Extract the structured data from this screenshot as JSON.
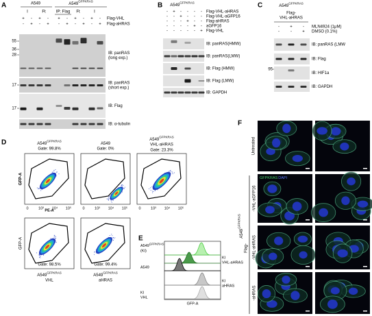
{
  "panel_a": {
    "label": "A",
    "parental": "A549",
    "ki": {
      "base": "A549",
      "sup": "GFPKRAS"
    },
    "subheaders": [
      "I",
      "Ft",
      "IP: Flag",
      "Ft",
      "I"
    ],
    "rows": [
      {
        "label": "Flag-VHL",
        "signs": [
          "+",
          "-",
          "+",
          "-",
          "+",
          "-",
          "+",
          "-",
          "+",
          "-"
        ]
      },
      {
        "label": "Flag-aHRAS",
        "signs": [
          "-",
          "+",
          "-",
          "+",
          "-",
          "+",
          "-",
          "+",
          "-",
          "+"
        ]
      }
    ],
    "markers": [
      55,
      36,
      28,
      17,
      17
    ],
    "blots": [
      [
        "IB: panRAS",
        "(long exp.)"
      ],
      [
        "IB: panRAS",
        "(short exp.)"
      ],
      [
        "IB: Flag"
      ],
      [
        "IB: α-tubulin"
      ]
    ]
  },
  "panel_b": {
    "label": "B",
    "ki": {
      "base": "A549",
      "sup": "GFPKRAS"
    },
    "rows": [
      {
        "label": "Flag-VHL-aHRAS",
        "signs": [
          "-",
          "+",
          "-",
          "-",
          "-",
          "-"
        ]
      },
      {
        "label": "Flag-VHL-aGFP16",
        "signs": [
          "-",
          "-",
          "+",
          "-",
          "-",
          "-"
        ]
      },
      {
        "label": "Flag-aHRAS",
        "signs": [
          "-",
          "-",
          "-",
          "+",
          "-",
          "-"
        ]
      },
      {
        "label": "aGFP16",
        "signs": [
          "-",
          "-",
          "-",
          "-",
          "+",
          "-"
        ]
      },
      {
        "label": "Flag-VHL",
        "signs": [
          "-",
          "-",
          "-",
          "-",
          "-",
          "+"
        ]
      }
    ],
    "blots": [
      "IB: panRAS(HMW)",
      "IB: panRAS(LMW)",
      "IB: Flag (HMW)",
      "IB: Flag (LMW)",
      "IB: GAPDH"
    ]
  },
  "panel_c": {
    "label": "C",
    "ki": {
      "base": "A549",
      "sup": "GFPKRAS"
    },
    "construct": [
      "Flag-",
      "VHL-aHRAS"
    ],
    "rows": [
      {
        "label": "MLN4924 (1μM)",
        "signs": [
          "-",
          "+",
          "-"
        ]
      },
      {
        "label": "DMSO (0.1%)",
        "signs": [
          "-",
          "-",
          "+"
        ]
      }
    ],
    "marker": 95,
    "blots": [
      "IB: panRAS (LMW",
      "IB: Flag",
      "IB: HIF1a",
      "IB: GAPDH"
    ]
  },
  "panel_d": {
    "label": "D",
    "y_label": "GFP-A",
    "x_label": "PE-A",
    "x_ticks": [
      "0",
      "10³",
      "10⁴",
      "10⁵"
    ],
    "plots": [
      {
        "base": "A549",
        "sup": "GFPKRAS",
        "gate": "Gate: 99.8%"
      },
      {
        "base": "A549",
        "gate": "Gate: 0%"
      },
      {
        "base": "A549",
        "sup": "GFPKRAS",
        "name": "VHL-aHRAS",
        "gate": "Gate: 23.3%"
      },
      {
        "base": "A549",
        "sup": "GFPKRAS",
        "name": "VHL",
        "gate": "Gate: 98.5%"
      },
      {
        "base": "A549",
        "sup": "GFPKRAS",
        "name": "aHRAS",
        "gate": "Gate: 99.4%"
      }
    ]
  },
  "panel_e": {
    "label": "E",
    "x_label": "GFP-A",
    "ki": {
      "base": "A549",
      "sup": "GFPKRAS"
    },
    "ki_note": "(KI)",
    "parental": "A549",
    "others": [
      [
        "KI",
        "VHL-aHRAS"
      ],
      [
        "KI",
        "aHRAS"
      ],
      [
        "KI",
        "VHL"
      ]
    ]
  },
  "panel_f": {
    "label": "F",
    "untreated": "Untreated",
    "stain": [
      "GFPKRAS",
      "DAPI"
    ],
    "ki": {
      "base": "A549",
      "sup": "GFPKRAS"
    },
    "flag": "Flag-",
    "treatments": [
      "-VHL-aGFP16",
      "-VHL-aHRAS",
      "-aHRAS"
    ]
  }
}
